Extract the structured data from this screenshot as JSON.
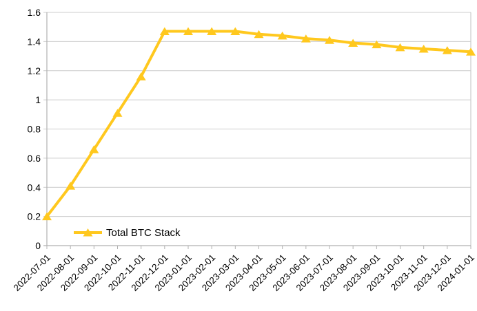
{
  "chart_data": {
    "type": "line",
    "title": "",
    "xlabel": "",
    "ylabel": "",
    "categories": [
      "2022-07-01",
      "2022-08-01",
      "2022-09-01",
      "2022-10-01",
      "2022-11-01",
      "2022-12-01",
      "2023-01-01",
      "2023-02-01",
      "2023-03-01",
      "2023-04-01",
      "2023-05-01",
      "2023-06-01",
      "2023-07-01",
      "2023-08-01",
      "2023-09-01",
      "2023-10-01",
      "2023-11-01",
      "2023-12-01",
      "2024-01-01"
    ],
    "series": [
      {
        "name": "Total BTC Stack",
        "marker": "triangle-up",
        "color": "#FFC81E",
        "values": [
          0.2,
          0.41,
          0.66,
          0.91,
          1.16,
          1.47,
          1.47,
          1.47,
          1.47,
          1.45,
          1.44,
          1.42,
          1.41,
          1.39,
          1.38,
          1.36,
          1.35,
          1.34,
          1.33
        ]
      }
    ],
    "ylim": [
      0,
      1.6
    ],
    "y_tick_values": [
      0,
      0.2,
      0.4,
      0.6,
      0.8,
      1,
      1.2,
      1.4,
      1.6
    ],
    "y_tick_labels": [
      "0",
      "0.2",
      "0.4",
      "0.6",
      "0.8",
      "1",
      "1.2",
      "1.4",
      "1.6"
    ],
    "grid": "horizontal",
    "x_label_rotation_deg": -45,
    "legend": {
      "label": "Total BTC Stack",
      "position": "inside-bottom-left"
    },
    "colors": {
      "background": "#ffffff",
      "grid": "#cccccc",
      "axis": "#b0b0b0",
      "text": "#000000"
    }
  }
}
